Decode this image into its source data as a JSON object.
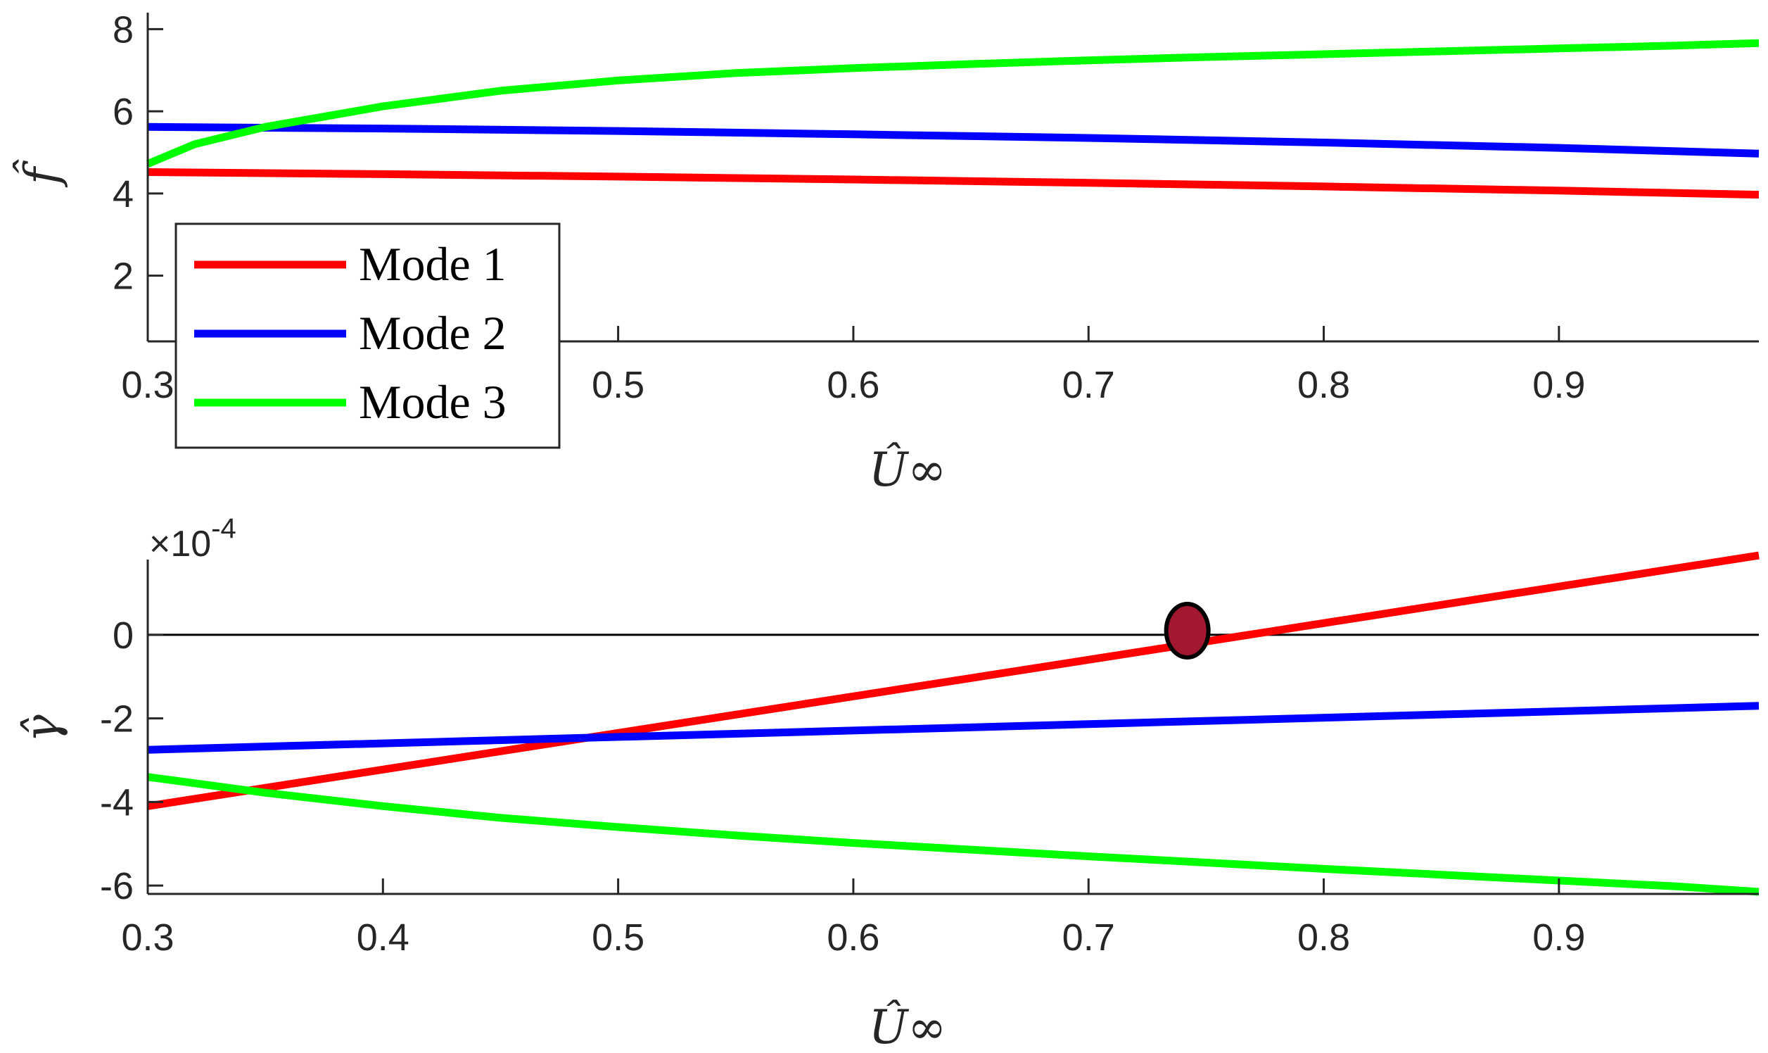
{
  "colors": {
    "mode1": "#ff0000",
    "mode2": "#0000ff",
    "mode3": "#00ff00",
    "marker": "#a21830"
  },
  "chart_data": [
    {
      "type": "line",
      "xlabel": "Û∞",
      "ylabel": "f̂",
      "xlim": [
        0.3,
        0.985
      ],
      "ylim": [
        0.4,
        8.4
      ],
      "xticks": [
        0.3,
        0.5,
        0.6,
        0.7,
        0.8,
        0.9
      ],
      "xtick_labels": [
        "0.3",
        "0.5",
        "0.6",
        "0.7",
        "0.8",
        "0.9"
      ],
      "yticks": [
        2,
        4,
        6,
        8
      ],
      "ytick_labels": [
        "2",
        "4",
        "6",
        "8"
      ],
      "grid": false,
      "legend": {
        "position": "bottom-left",
        "entries": [
          "Mode 1",
          "Mode 2",
          "Mode 3"
        ]
      },
      "series": [
        {
          "name": "Mode 1",
          "color": "#ff0000",
          "x": [
            0.3,
            0.4,
            0.5,
            0.6,
            0.7,
            0.8,
            0.9,
            0.985
          ],
          "y": [
            4.52,
            4.47,
            4.41,
            4.34,
            4.26,
            4.17,
            4.07,
            3.97
          ]
        },
        {
          "name": "Mode 2",
          "color": "#0000ff",
          "x": [
            0.3,
            0.4,
            0.5,
            0.6,
            0.7,
            0.8,
            0.9,
            0.985
          ],
          "y": [
            5.62,
            5.58,
            5.52,
            5.44,
            5.35,
            5.24,
            5.11,
            4.97
          ]
        },
        {
          "name": "Mode 3",
          "color": "#00ff00",
          "x": [
            0.3,
            0.32,
            0.35,
            0.4,
            0.45,
            0.5,
            0.55,
            0.6,
            0.65,
            0.7,
            0.75,
            0.8,
            0.85,
            0.9,
            0.95,
            0.985
          ],
          "y": [
            4.72,
            5.2,
            5.62,
            6.12,
            6.5,
            6.75,
            6.93,
            7.05,
            7.15,
            7.24,
            7.32,
            7.39,
            7.46,
            7.53,
            7.6,
            7.66
          ]
        }
      ]
    },
    {
      "type": "line",
      "xlabel": "Û∞",
      "ylabel": "γ̂",
      "exponent_label": "×10",
      "exponent_power": "-4",
      "xlim": [
        0.3,
        0.985
      ],
      "ylim": [
        -6.2,
        1.8
      ],
      "xticks": [
        0.3,
        0.4,
        0.5,
        0.6,
        0.7,
        0.8,
        0.9
      ],
      "xtick_labels": [
        "0.3",
        "0.4",
        "0.5",
        "0.6",
        "0.7",
        "0.8",
        "0.9"
      ],
      "yticks": [
        -6,
        -4,
        -2,
        0
      ],
      "ytick_labels": [
        "-6",
        "-4",
        "-2",
        "0"
      ],
      "grid": false,
      "zero_line": true,
      "series": [
        {
          "name": "Mode 1",
          "color": "#ff0000",
          "x": [
            0.3,
            0.985
          ],
          "y": [
            -4.1,
            1.9
          ]
        },
        {
          "name": "Mode 2",
          "color": "#0000ff",
          "x": [
            0.3,
            0.985
          ],
          "y": [
            -2.75,
            -1.7
          ]
        },
        {
          "name": "Mode 3",
          "color": "#00ff00",
          "x": [
            0.3,
            0.35,
            0.4,
            0.45,
            0.5,
            0.55,
            0.6,
            0.65,
            0.7,
            0.75,
            0.8,
            0.85,
            0.9,
            0.95,
            0.985
          ],
          "y": [
            -3.4,
            -3.78,
            -4.1,
            -4.38,
            -4.6,
            -4.8,
            -4.98,
            -5.14,
            -5.3,
            -5.45,
            -5.6,
            -5.74,
            -5.88,
            -6.02,
            -6.15
          ]
        }
      ],
      "annotations": [
        {
          "type": "marker",
          "shape": "circle",
          "x": 0.742,
          "y": 0.1,
          "color": "#a21830"
        }
      ]
    }
  ]
}
